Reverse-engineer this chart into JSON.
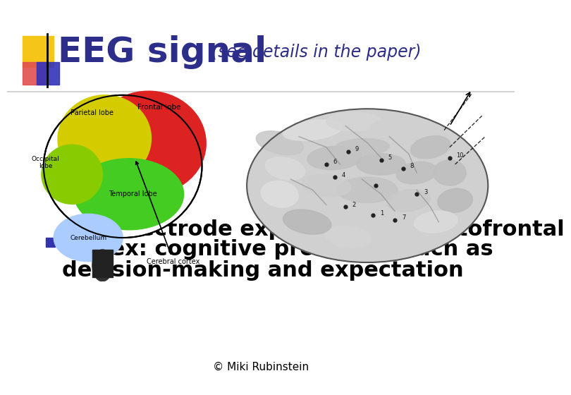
{
  "title_main": "EEG signal",
  "title_sub": "(see details in the paper)",
  "title_color": "#2d2d8a",
  "title_sub_color": "#2d2d8a",
  "bullet_text_line1": "10 – Electrode exploring the orbitofrontal",
  "bullet_text_line2": "cortex: cognitive processes such as",
  "bullet_text_line3": "decision-making and expectation",
  "bullet_color": "#3333aa",
  "copyright": "© Miki Rubinstein",
  "bg_color": "#ffffff",
  "logo_yellow": "#f5c518",
  "logo_red": "#e05050",
  "logo_blue": "#3333bb",
  "title_fontsize": 36,
  "title_sub_fontsize": 17,
  "bullet_fontsize": 22,
  "copyright_fontsize": 11,
  "line_color": "#cccccc"
}
